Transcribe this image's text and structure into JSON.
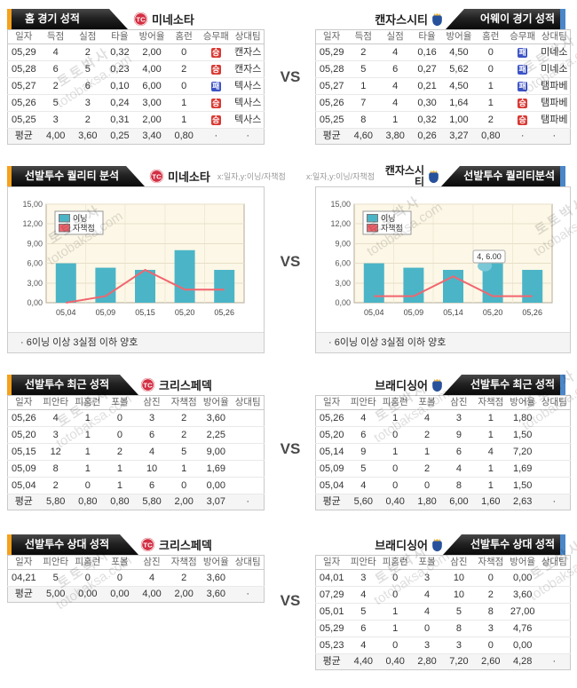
{
  "page": {
    "vs": "VS",
    "watermark_korean": "토토박사",
    "watermark_domain": "totobaksa.com"
  },
  "colors": {
    "accent_left": "#f5a11c",
    "accent_right": "#4a86c8",
    "win": "#d93832",
    "loss": "#3c53c6",
    "bar": "#4bb5c7",
    "bar_highlight": "#79c8d8",
    "line": "#f2656e",
    "plot_bg": "#fcf7e6",
    "plot_grid": "#e7dfc8",
    "plot_border": "#b3ab95"
  },
  "sections": {
    "home_away": {
      "left": {
        "banner": "홈 경기 성적",
        "team": "미네소타",
        "table": {
          "headers": [
            "일자",
            "득점",
            "실점",
            "타율",
            "방어율",
            "홈런",
            "승무패",
            "상대팀"
          ],
          "rows": [
            [
              "05,29",
              "4",
              "2",
              "0,32",
              "2,00",
              "0",
              {
                "badge": "승"
              },
              "캔자스"
            ],
            [
              "05,28",
              "6",
              "5",
              "0,23",
              "4,00",
              "2",
              {
                "badge": "승"
              },
              "캔자스"
            ],
            [
              "05,27",
              "2",
              "6",
              "0,10",
              "6,00",
              "0",
              {
                "badge": "패"
              },
              "텍사스"
            ],
            [
              "05,26",
              "5",
              "3",
              "0,24",
              "3,00",
              "1",
              {
                "badge": "승"
              },
              "텍사스"
            ],
            [
              "05,25",
              "3",
              "2",
              "0,31",
              "2,00",
              "1",
              {
                "badge": "승"
              },
              "텍사스"
            ]
          ],
          "avg": [
            "평균",
            "4,00",
            "3,60",
            "0,25",
            "3,40",
            "0,80",
            "·",
            "·"
          ]
        }
      },
      "right": {
        "banner": "어웨이 경기 성적",
        "team": "캔자스시티",
        "table": {
          "headers": [
            "일자",
            "득점",
            "실점",
            "타율",
            "방어율",
            "홈런",
            "승무패",
            "상대팀"
          ],
          "rows": [
            [
              "05,29",
              "2",
              "4",
              "0,16",
              "4,50",
              "0",
              {
                "badge": "패"
              },
              "미네소"
            ],
            [
              "05,28",
              "5",
              "6",
              "0,27",
              "5,62",
              "0",
              {
                "badge": "패"
              },
              "미네소"
            ],
            [
              "05,27",
              "1",
              "4",
              "0,21",
              "4,50",
              "1",
              {
                "badge": "패"
              },
              "탬파베"
            ],
            [
              "05,26",
              "7",
              "4",
              "0,30",
              "1,64",
              "1",
              {
                "badge": "승"
              },
              "탬파베"
            ],
            [
              "05,25",
              "8",
              "1",
              "0,32",
              "1,00",
              "2",
              {
                "badge": "승"
              },
              "탬파베"
            ]
          ],
          "avg": [
            "평균",
            "4,60",
            "3,80",
            "0,26",
            "3,27",
            "0,80",
            "·",
            "·"
          ]
        }
      }
    },
    "quality": {
      "left": {
        "banner": "선발투수 퀄리티 분석",
        "team": "미네소타",
        "axis_note": "x:일자,y:이닝/자책점",
        "note": "· 6이닝 이상 3실점 이하 양호"
      },
      "right": {
        "banner": "선발투수 퀄리티분석",
        "team": "캔자스시티",
        "axis_note": "x:일자,y:이닝/자책점",
        "note": "· 6이닝 이상 3실점 이하 양호"
      }
    },
    "recent": {
      "left": {
        "banner": "선발투수 최근 성적",
        "team": "크리스페덱",
        "table": {
          "headers": [
            "일자",
            "피안타",
            "피홈런",
            "포볼",
            "삼진",
            "자책점",
            "방어율",
            "상대팀"
          ],
          "rows": [
            [
              "05,26",
              "4",
              "1",
              "0",
              "3",
              "2",
              "3,60",
              ""
            ],
            [
              "05,20",
              "3",
              "1",
              "0",
              "6",
              "2",
              "2,25",
              ""
            ],
            [
              "05,15",
              "12",
              "1",
              "2",
              "4",
              "5",
              "9,00",
              ""
            ],
            [
              "05,09",
              "8",
              "1",
              "1",
              "10",
              "1",
              "1,69",
              ""
            ],
            [
              "05,04",
              "2",
              "0",
              "1",
              "6",
              "0",
              "0,00",
              ""
            ]
          ],
          "avg": [
            "평균",
            "5,80",
            "0,80",
            "0,80",
            "5,80",
            "2,00",
            "3,07",
            "·"
          ]
        }
      },
      "right": {
        "banner": "선발투수 최근 성적",
        "team": "브래디싱어",
        "table": {
          "headers": [
            "일자",
            "피안타",
            "피홈런",
            "포볼",
            "삼진",
            "자책점",
            "방어율",
            "상대팀"
          ],
          "rows": [
            [
              "05,26",
              "4",
              "1",
              "4",
              "3",
              "1",
              "1,80",
              ""
            ],
            [
              "05,20",
              "6",
              "0",
              "2",
              "9",
              "1",
              "1,50",
              ""
            ],
            [
              "05,14",
              "9",
              "1",
              "1",
              "6",
              "4",
              "7,20",
              ""
            ],
            [
              "05,09",
              "5",
              "0",
              "2",
              "4",
              "1",
              "1,69",
              ""
            ],
            [
              "05,04",
              "4",
              "0",
              "0",
              "8",
              "1",
              "1,50",
              ""
            ]
          ],
          "avg": [
            "평균",
            "5,60",
            "0,40",
            "1,80",
            "6,00",
            "1,60",
            "2,63",
            "·"
          ]
        }
      }
    },
    "versus": {
      "left": {
        "banner": "선발투수 상대 성적",
        "team": "크리스페덱",
        "table": {
          "headers": [
            "일자",
            "피안타",
            "피홈런",
            "포볼",
            "삼진",
            "자책점",
            "방어율",
            "상대팀"
          ],
          "rows": [
            [
              "04,21",
              "5",
              "0",
              "0",
              "4",
              "2",
              "3,60",
              ""
            ]
          ],
          "avg": [
            "평균",
            "5,00",
            "0,00",
            "0,00",
            "4,00",
            "2,00",
            "3,60",
            "·"
          ]
        }
      },
      "right": {
        "banner": "선발투수 상대 성적",
        "team": "브래디싱어",
        "table": {
          "headers": [
            "일자",
            "피안타",
            "피홈런",
            "포볼",
            "삼진",
            "자책점",
            "방어율",
            "상대팀"
          ],
          "rows": [
            [
              "04,01",
              "3",
              "0",
              "3",
              "10",
              "0",
              "0,00",
              ""
            ],
            [
              "07,29",
              "4",
              "0",
              "4",
              "10",
              "2",
              "3,60",
              ""
            ],
            [
              "05,01",
              "5",
              "1",
              "4",
              "5",
              "8",
              "27,00",
              ""
            ],
            [
              "05,29",
              "6",
              "1",
              "0",
              "8",
              "3",
              "4,76",
              ""
            ],
            [
              "05,23",
              "4",
              "0",
              "3",
              "3",
              "0",
              "0,00",
              ""
            ]
          ],
          "avg": [
            "평균",
            "4,40",
            "0,40",
            "2,80",
            "7,20",
            "2,60",
            "4,28",
            "·"
          ]
        }
      }
    }
  },
  "chart_data": [
    {
      "type": "bar+line",
      "title": "선발투수 퀄리티 분석 (미네소타)",
      "categories": [
        "05,04",
        "05,09",
        "05,15",
        "05,20",
        "05,26"
      ],
      "series": [
        {
          "name": "이닝",
          "type": "bar",
          "values": [
            6,
            5.33,
            5,
            8,
            5
          ]
        },
        {
          "name": "자책점",
          "type": "line",
          "values": [
            0,
            1,
            5,
            2,
            2
          ]
        }
      ],
      "ylim": [
        0,
        15
      ],
      "yticks": [
        "0,00",
        "3,00",
        "6,00",
        "9,00",
        "12,00",
        "15,00"
      ],
      "legend_position": "top-left",
      "grid": true
    },
    {
      "type": "bar+line",
      "title": "선발투수 퀄리티분석 (캔자스시티)",
      "categories": [
        "05,04",
        "05,09",
        "05,14",
        "05,20",
        "05,26"
      ],
      "series": [
        {
          "name": "이닝",
          "type": "bar",
          "values": [
            6,
            5.33,
            5,
            6,
            5
          ]
        },
        {
          "name": "자책점",
          "type": "line",
          "values": [
            1,
            1,
            4,
            1,
            1
          ]
        }
      ],
      "ylim": [
        0,
        15
      ],
      "yticks": [
        "0,00",
        "3,00",
        "6,00",
        "9,00",
        "12,00",
        "15,00"
      ],
      "legend_position": "top-left",
      "grid": true,
      "tooltip": {
        "text": "4, 6.00",
        "index": 3
      },
      "highlight_index": 3
    }
  ]
}
